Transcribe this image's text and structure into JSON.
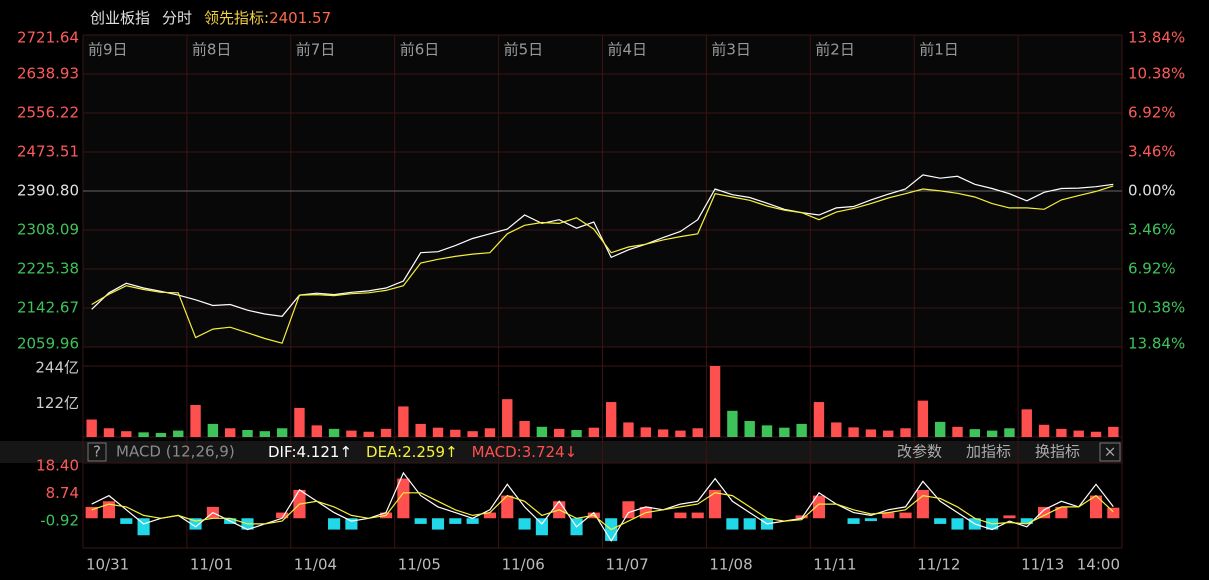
{
  "chart_data": [
    {
      "type": "line",
      "title": "创业板指",
      "subtitle": "分时",
      "indicator_label": "领先指标:",
      "indicator_value": 2401.57,
      "indicator_color": "#f0d040",
      "value_color": "#ff6a4a",
      "days": [
        "前9日",
        "前8日",
        "前7日",
        "前6日",
        "前5日",
        "前4日",
        "前3日",
        "前2日",
        "前1日",
        null
      ],
      "ylim": [
        2059.96,
        2721.64
      ],
      "yticks": [
        2721.64,
        2638.93,
        2556.22,
        2473.51,
        {
          "value": 2390.8,
          "label": "2390.80"
        },
        2308.09,
        2225.38,
        2142.67,
        2059.96
      ],
      "y2lim": [
        -13.84,
        13.84
      ],
      "y2ticks": [
        {
          "value": 13.84,
          "label": "13.84%"
        },
        {
          "value": 10.38,
          "label": "10.38%"
        },
        {
          "value": 6.92,
          "label": "6.92%"
        },
        {
          "value": 3.46,
          "label": "3.46%"
        },
        {
          "value": 0,
          "label": "0.00%"
        },
        {
          "value": -3.46,
          "label": "3.46%"
        },
        {
          "value": -6.92,
          "label": "6.92%"
        },
        {
          "value": -10.38,
          "label": "10.38%"
        },
        {
          "value": -13.84,
          "label": "13.84%"
        }
      ],
      "grid": true,
      "series": [
        {
          "color": "#ffffff",
          "values": [
            2140,
            2175,
            2195,
            2185,
            2178,
            2170,
            2160,
            2148,
            2150,
            2138,
            2130,
            2125,
            2170,
            2174,
            2171,
            2176,
            2179,
            2185,
            2200,
            2260,
            2262,
            2275,
            2290,
            2300,
            2310,
            2340,
            2322,
            2330,
            2312,
            2325,
            2250,
            2266,
            2278,
            2292,
            2305,
            2330,
            2395,
            2383,
            2377,
            2365,
            2352,
            2345,
            2340,
            2355,
            2358,
            2372,
            2384,
            2395,
            2425,
            2418,
            2422,
            2405,
            2396,
            2385,
            2370,
            2388,
            2396,
            2397,
            2400,
            2405
          ]
        },
        {
          "color": "#f5f03a",
          "values": [
            2150,
            2172,
            2190,
            2182,
            2176,
            2175,
            2080,
            2098,
            2102,
            2090,
            2078,
            2068,
            2170,
            2171,
            2169,
            2173,
            2175,
            2180,
            2190,
            2238,
            2246,
            2252,
            2257,
            2260,
            2300,
            2318,
            2324,
            2322,
            2334,
            2310,
            2260,
            2272,
            2278,
            2287,
            2294,
            2300,
            2385,
            2378,
            2371,
            2359,
            2350,
            2345,
            2330,
            2346,
            2354,
            2364,
            2376,
            2385,
            2395,
            2391,
            2386,
            2378,
            2364,
            2355,
            2355,
            2352,
            2372,
            2381,
            2390,
            2401.57
          ]
        }
      ]
    },
    {
      "type": "bar",
      "title": "成交额(元)",
      "ylim": [
        0,
        244
      ],
      "yticks": [
        {
          "value": 244,
          "label": "244亿"
        },
        {
          "value": 122,
          "label": "122亿"
        }
      ],
      "up_color": "#ff5050",
      "down_color": "#3ec35a",
      "values": [
        60,
        30,
        20,
        16,
        14,
        22,
        110,
        45,
        30,
        24,
        20,
        30,
        100,
        40,
        28,
        22,
        18,
        28,
        105,
        45,
        32,
        25,
        20,
        30,
        130,
        55,
        35,
        28,
        24,
        32,
        120,
        50,
        33,
        26,
        22,
        30,
        244,
        90,
        55,
        40,
        32,
        45,
        120,
        50,
        33,
        26,
        22,
        30,
        125,
        52,
        35,
        27,
        22,
        30,
        95,
        42,
        28,
        22,
        18,
        35
      ]
    },
    {
      "type": "macd",
      "title": "MACD (12,26,9)",
      "readouts": [
        {
          "label": "DIF:",
          "value": 4.121,
          "arrow": "↑",
          "color": "#ffffff"
        },
        {
          "label": "DEA:",
          "value": 2.259,
          "arrow": "↑",
          "color": "#f5f03a"
        },
        {
          "label": "MACD:",
          "value": 3.724,
          "arrow": "↓",
          "color": "#ff5050"
        }
      ],
      "buttons": [
        "改参数",
        "加指标",
        "换指标"
      ],
      "ylim": [
        -10.5,
        19.5
      ],
      "yticks": [
        {
          "value": 18.4,
          "label": "18.40"
        },
        8.74,
        -0.92
      ],
      "x_labels": [
        "10/31",
        "11/01",
        "11/04",
        "11/05",
        "11/06",
        "11/07",
        "11/08",
        "11/11",
        "11/12",
        "11/13"
      ],
      "time_label": "14:00",
      "series": [
        {
          "color": "#ffffff",
          "values": [
            5,
            8,
            3,
            -2,
            0,
            1,
            -3,
            2,
            -1,
            -4,
            -2,
            0,
            10,
            6,
            2,
            -1,
            0,
            2,
            16,
            8,
            4,
            2,
            0,
            3,
            12,
            4,
            -2,
            6,
            -3,
            2,
            -8,
            2,
            4,
            3,
            5,
            6,
            14,
            6,
            2,
            -2,
            -1,
            0,
            9,
            5,
            2,
            1,
            3,
            4,
            13,
            6,
            2,
            -2,
            -4,
            -1,
            -3,
            3,
            6,
            4,
            12,
            4.121
          ]
        },
        {
          "color": "#f5f03a",
          "values": [
            3,
            5,
            4,
            1,
            0,
            1,
            -1,
            0,
            0,
            -2,
            -2,
            -1,
            5,
            6,
            4,
            1,
            0,
            1,
            9,
            9,
            6,
            3,
            1,
            2,
            8,
            6,
            1,
            3,
            0,
            1,
            -4,
            -1,
            2,
            3,
            4,
            5,
            9,
            8,
            4,
            0,
            -1,
            -0.5,
            5,
            5,
            3,
            1.5,
            2,
            3,
            8,
            7,
            4,
            0,
            -2,
            -1.5,
            -2,
            1,
            4,
            4,
            8,
            2.259
          ]
        },
        {
          "color": "#ff5050",
          "down_color": "#20d8e8",
          "values": [
            4,
            6,
            -2,
            -6,
            0,
            0,
            -4,
            4,
            -2,
            -4,
            0,
            2,
            10,
            0,
            -4,
            -4,
            0,
            2,
            14,
            -2,
            -4,
            -2,
            -2,
            2,
            8,
            -4,
            -6,
            6,
            -6,
            2,
            -8,
            6,
            4,
            0,
            2,
            2,
            10,
            -4,
            -4,
            -4,
            0,
            1,
            8,
            0,
            -2,
            -1,
            2,
            2,
            10,
            -2,
            -4,
            -4,
            -4,
            1,
            -2,
            4,
            4,
            0,
            8,
            3.724
          ]
        }
      ]
    }
  ]
}
